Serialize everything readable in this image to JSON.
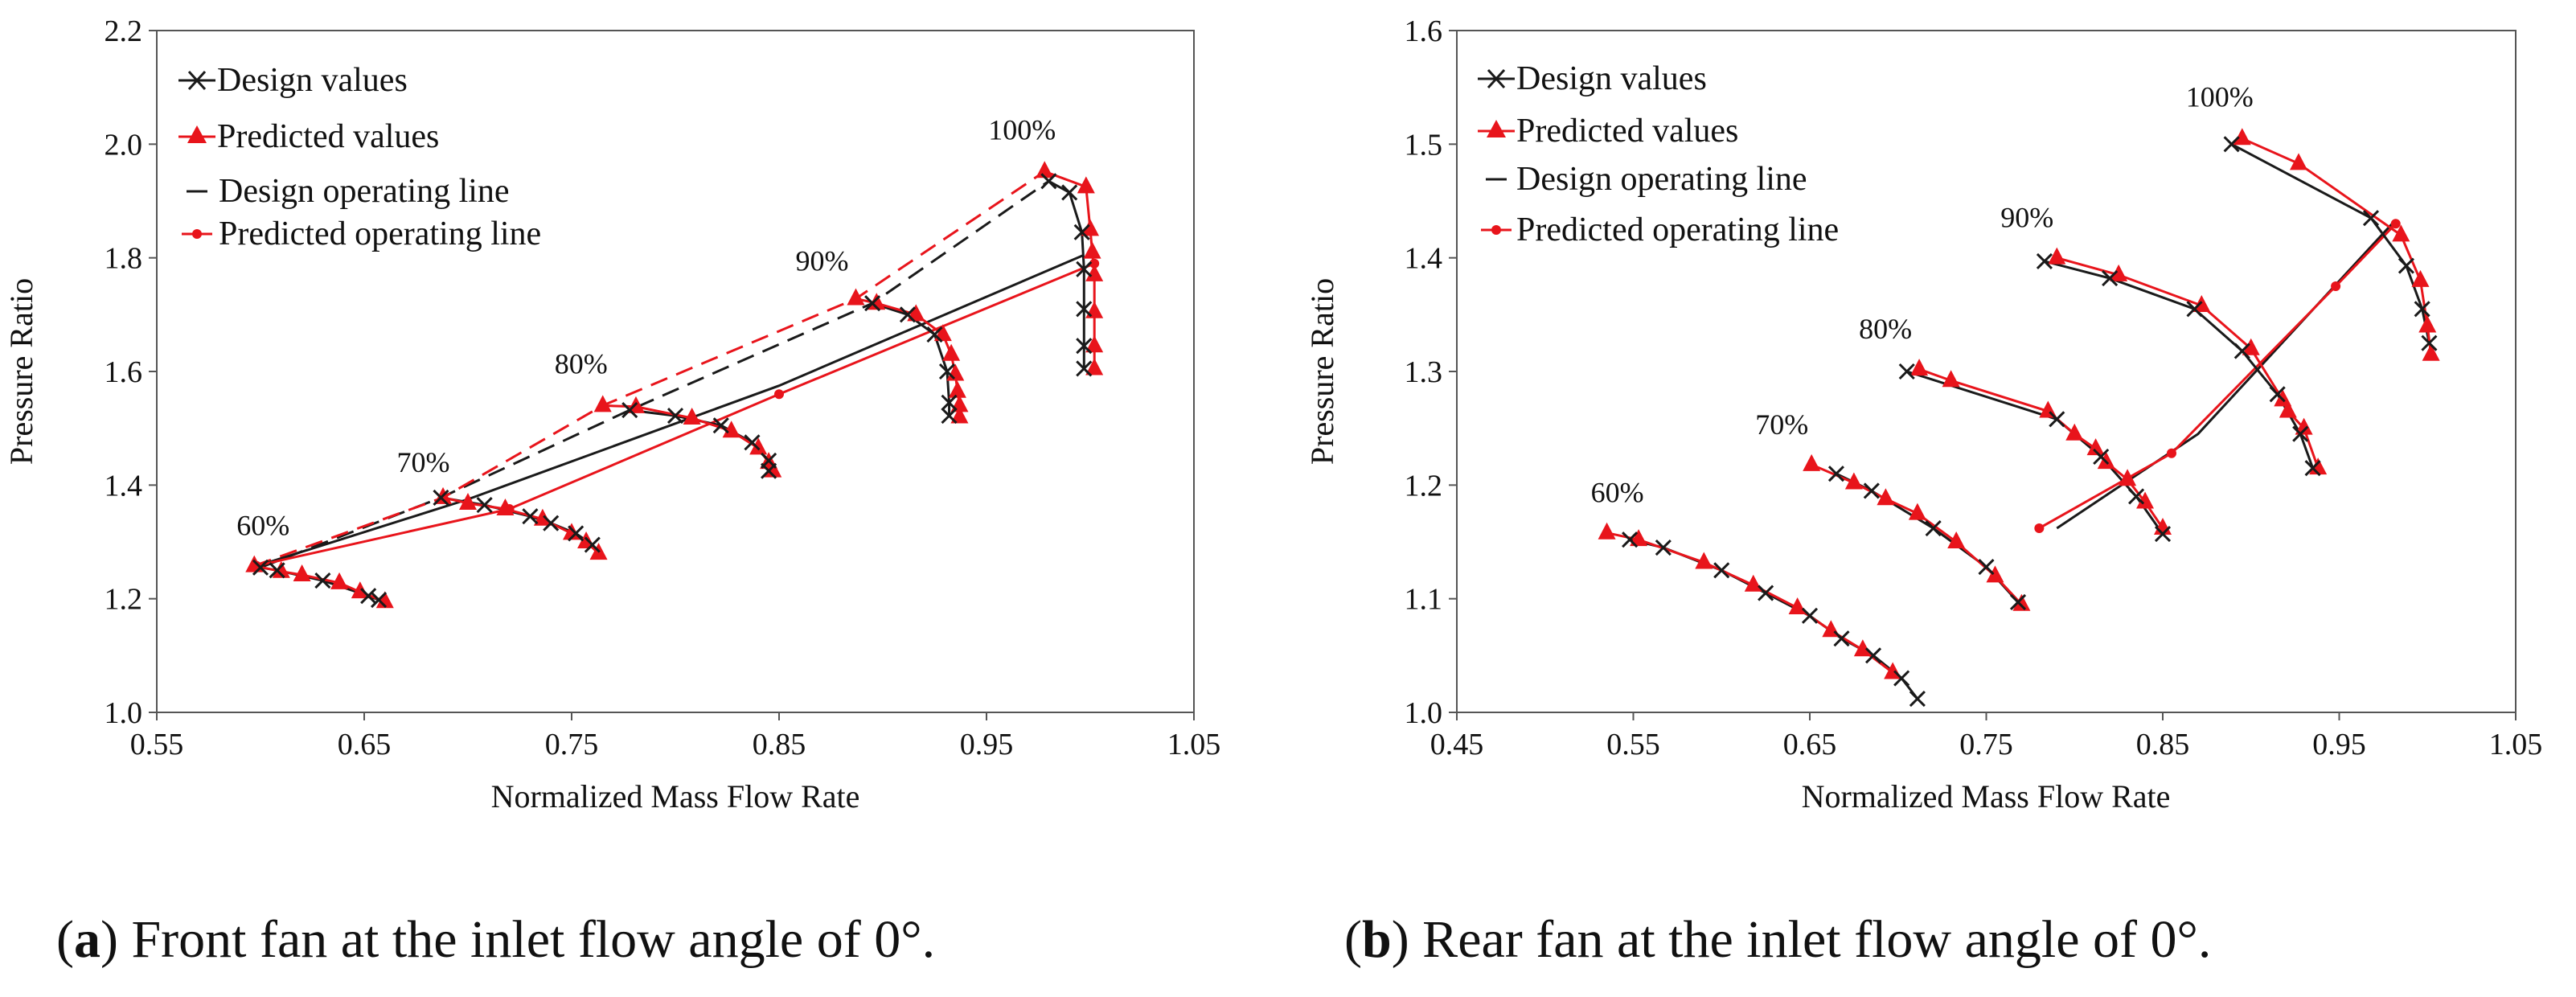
{
  "figure": {
    "captions": [
      {
        "letter": "a",
        "text": ") Front fan at the inlet flow angle of 0°."
      },
      {
        "letter": "b",
        "text": ") Rear fan at the inlet flow angle of 0°."
      }
    ]
  },
  "colors": {
    "design": "#1a1a1a",
    "predicted": "#e8141b"
  },
  "chart_data": [
    {
      "type": "line",
      "name": "front-fan",
      "xlabel": "Normalized Mass Flow Rate",
      "ylabel": "Pressure Ratio",
      "xlim": [
        0.55,
        1.05
      ],
      "ylim": [
        1.0,
        2.2
      ],
      "xticks": [
        0.55,
        0.65,
        0.75,
        0.85,
        0.95,
        1.05
      ],
      "xtick_labels": [
        "0.55",
        "0.65",
        "0.75",
        "0.85",
        "0.95",
        "1.05"
      ],
      "yticks": [
        1.0,
        1.2,
        1.4,
        1.6,
        1.8,
        2.0,
        2.2
      ],
      "ytick_labels": [
        "1.0",
        "1.2",
        "1.4",
        "1.6",
        "1.8",
        "2.0",
        "2.2"
      ],
      "legend": {
        "position": "top-left",
        "entries": [
          "Design values",
          "Predicted values",
          "Design operating line",
          "Predicted operating line"
        ]
      },
      "speed_lines": [
        {
          "label": "60%",
          "design": [
            [
              0.6,
              1.255
            ],
            [
              0.608,
              1.25
            ],
            [
              0.63,
              1.232
            ],
            [
              0.652,
              1.205
            ],
            [
              0.657,
              1.198
            ]
          ],
          "predicted": [
            [
              0.597,
              1.258
            ],
            [
              0.61,
              1.248
            ],
            [
              0.62,
              1.242
            ],
            [
              0.638,
              1.228
            ],
            [
              0.648,
              1.212
            ],
            [
              0.66,
              1.195
            ]
          ]
        },
        {
          "label": "70%",
          "design": [
            [
              0.687,
              1.378
            ],
            [
              0.708,
              1.365
            ],
            [
              0.73,
              1.345
            ],
            [
              0.74,
              1.333
            ],
            [
              0.752,
              1.315
            ],
            [
              0.76,
              1.295
            ]
          ],
          "predicted": [
            [
              0.688,
              1.378
            ],
            [
              0.7,
              1.368
            ],
            [
              0.718,
              1.358
            ],
            [
              0.736,
              1.34
            ],
            [
              0.75,
              1.315
            ],
            [
              0.757,
              1.3
            ],
            [
              0.763,
              1.28
            ]
          ]
        },
        {
          "label": "80%",
          "design": [
            [
              0.778,
              1.532
            ],
            [
              0.8,
              1.522
            ],
            [
              0.822,
              1.505
            ],
            [
              0.837,
              1.475
            ],
            [
              0.845,
              1.443
            ],
            [
              0.845,
              1.425
            ]
          ],
          "predicted": [
            [
              0.765,
              1.54
            ],
            [
              0.781,
              1.538
            ],
            [
              0.808,
              1.518
            ],
            [
              0.827,
              1.495
            ],
            [
              0.84,
              1.465
            ],
            [
              0.845,
              1.44
            ],
            [
              0.847,
              1.425
            ]
          ]
        },
        {
          "label": "90%",
          "design": [
            [
              0.895,
              1.72
            ],
            [
              0.912,
              1.7
            ],
            [
              0.925,
              1.665
            ],
            [
              0.931,
              1.6
            ],
            [
              0.932,
              1.545
            ],
            [
              0.932,
              1.522
            ]
          ],
          "predicted": [
            [
              0.887,
              1.728
            ],
            [
              0.897,
              1.72
            ],
            [
              0.916,
              1.7
            ],
            [
              0.929,
              1.665
            ],
            [
              0.933,
              1.63
            ],
            [
              0.935,
              1.595
            ],
            [
              0.936,
              1.565
            ],
            [
              0.937,
              1.54
            ],
            [
              0.937,
              1.52
            ]
          ]
        },
        {
          "label": "100%",
          "design": [
            [
              0.98,
              1.935
            ],
            [
              0.99,
              1.915
            ],
            [
              0.996,
              1.845
            ],
            [
              0.997,
              1.78
            ],
            [
              0.997,
              1.71
            ],
            [
              0.997,
              1.645
            ],
            [
              0.997,
              1.605
            ]
          ],
          "predicted": [
            [
              0.978,
              1.952
            ],
            [
              0.998,
              1.925
            ],
            [
              1.0,
              1.85
            ],
            [
              1.001,
              1.81
            ],
            [
              1.002,
              1.77
            ],
            [
              1.002,
              1.705
            ],
            [
              1.002,
              1.645
            ],
            [
              1.002,
              1.605
            ]
          ]
        }
      ],
      "design_operating_line": [
        [
          0.602,
          1.262
        ],
        [
          0.7,
          1.375
        ],
        [
          0.85,
          1.575
        ],
        [
          0.997,
          1.805
        ]
      ],
      "predicted_operating_line": [
        [
          0.598,
          1.258
        ],
        [
          0.72,
          1.358
        ],
        [
          0.85,
          1.56
        ],
        [
          1.002,
          1.79
        ]
      ],
      "design_surge_line": [
        [
          0.6,
          1.255
        ],
        [
          0.687,
          1.378
        ],
        [
          0.778,
          1.532
        ],
        [
          0.895,
          1.72
        ],
        [
          0.98,
          1.935
        ]
      ],
      "predicted_surge_line": [
        [
          0.597,
          1.258
        ],
        [
          0.688,
          1.378
        ],
        [
          0.765,
          1.54
        ],
        [
          0.887,
          1.728
        ],
        [
          0.978,
          1.952
        ]
      ]
    },
    {
      "type": "line",
      "name": "rear-fan",
      "xlabel": "Normalized Mass Flow Rate",
      "ylabel": "Pressure Ratio",
      "xlim": [
        0.45,
        1.05
      ],
      "ylim": [
        1.0,
        1.6
      ],
      "xticks": [
        0.45,
        0.55,
        0.65,
        0.75,
        0.85,
        0.95,
        1.05
      ],
      "xtick_labels": [
        "0.45",
        "0.55",
        "0.65",
        "0.75",
        "0.85",
        "0.95",
        "1.05"
      ],
      "yticks": [
        1.0,
        1.1,
        1.2,
        1.3,
        1.4,
        1.5,
        1.6
      ],
      "ytick_labels": [
        "1.0",
        "1.1",
        "1.2",
        "1.3",
        "1.4",
        "1.5",
        "1.6"
      ],
      "legend": {
        "position": "top-left",
        "entries": [
          "Design values",
          "Predicted values",
          "Design operating line",
          "Predicted operating line"
        ]
      },
      "speed_lines": [
        {
          "label": "60%",
          "design": [
            [
              0.548,
              1.152
            ],
            [
              0.567,
              1.145
            ],
            [
              0.6,
              1.125
            ],
            [
              0.625,
              1.105
            ],
            [
              0.65,
              1.085
            ],
            [
              0.668,
              1.065
            ],
            [
              0.686,
              1.05
            ],
            [
              0.702,
              1.03
            ],
            [
              0.711,
              1.012
            ]
          ],
          "predicted": [
            [
              0.535,
              1.158
            ],
            [
              0.553,
              1.152
            ],
            [
              0.59,
              1.132
            ],
            [
              0.618,
              1.112
            ],
            [
              0.643,
              1.092
            ],
            [
              0.662,
              1.072
            ],
            [
              0.68,
              1.055
            ],
            [
              0.697,
              1.035
            ]
          ]
        },
        {
          "label": "70%",
          "design": [
            [
              0.665,
              1.21
            ],
            [
              0.685,
              1.195
            ],
            [
              0.72,
              1.162
            ],
            [
              0.75,
              1.128
            ],
            [
              0.768,
              1.097
            ]
          ],
          "predicted": [
            [
              0.651,
              1.218
            ],
            [
              0.675,
              1.202
            ],
            [
              0.693,
              1.188
            ],
            [
              0.711,
              1.175
            ],
            [
              0.733,
              1.15
            ],
            [
              0.755,
              1.12
            ],
            [
              0.77,
              1.095
            ]
          ]
        },
        {
          "label": "80%",
          "design": [
            [
              0.705,
              1.3
            ],
            [
              0.79,
              1.258
            ],
            [
              0.815,
              1.225
            ],
            [
              0.835,
              1.19
            ],
            [
              0.85,
              1.157
            ]
          ],
          "predicted": [
            [
              0.712,
              1.302
            ],
            [
              0.73,
              1.292
            ],
            [
              0.785,
              1.265
            ],
            [
              0.8,
              1.245
            ],
            [
              0.812,
              1.232
            ],
            [
              0.818,
              1.22
            ],
            [
              0.83,
              1.205
            ],
            [
              0.84,
              1.185
            ],
            [
              0.85,
              1.162
            ]
          ]
        },
        {
          "label": "90%",
          "design": [
            [
              0.783,
              1.397
            ],
            [
              0.82,
              1.382
            ],
            [
              0.868,
              1.355
            ],
            [
              0.895,
              1.318
            ],
            [
              0.915,
              1.28
            ],
            [
              0.928,
              1.245
            ],
            [
              0.935,
              1.215
            ]
          ],
          "predicted": [
            [
              0.79,
              1.4
            ],
            [
              0.825,
              1.385
            ],
            [
              0.872,
              1.358
            ],
            [
              0.9,
              1.32
            ],
            [
              0.918,
              1.275
            ],
            [
              0.921,
              1.265
            ],
            [
              0.93,
              1.25
            ],
            [
              0.938,
              1.215
            ]
          ]
        },
        {
          "label": "100%",
          "design": [
            [
              0.889,
              1.5
            ],
            [
              0.968,
              1.435
            ],
            [
              0.988,
              1.393
            ],
            [
              0.997,
              1.355
            ],
            [
              1.001,
              1.325
            ]
          ],
          "predicted": [
            [
              0.895,
              1.505
            ],
            [
              0.927,
              1.483
            ],
            [
              0.985,
              1.42
            ],
            [
              0.996,
              1.38
            ],
            [
              1.0,
              1.34
            ],
            [
              1.002,
              1.315
            ]
          ]
        }
      ],
      "design_operating_line": [
        [
          0.79,
          1.162
        ],
        [
          0.87,
          1.245
        ],
        [
          0.98,
          1.43
        ]
      ],
      "predicted_operating_line": [
        [
          0.78,
          1.162
        ],
        [
          0.855,
          1.228
        ],
        [
          0.948,
          1.375
        ],
        [
          0.982,
          1.43
        ]
      ]
    }
  ]
}
